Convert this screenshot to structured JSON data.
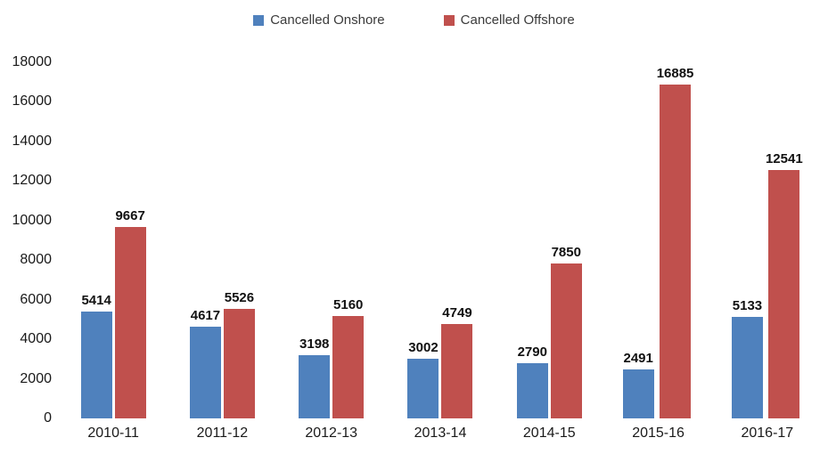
{
  "chart_data": {
    "type": "bar",
    "title": "",
    "xlabel": "",
    "ylabel": "",
    "categories": [
      "2010-11",
      "2011-12",
      "2012-13",
      "2013-14",
      "2014-15",
      "2015-16",
      "2016-17"
    ],
    "series": [
      {
        "name": "Cancelled Onshore",
        "color": "#4f81bd",
        "values": [
          5414,
          4617,
          3198,
          3002,
          2790,
          2491,
          5133
        ]
      },
      {
        "name": "Cancelled Offshore",
        "color": "#c0504d",
        "values": [
          9667,
          5526,
          5160,
          4749,
          7850,
          16885,
          12541
        ]
      }
    ],
    "ylim": [
      0,
      18000
    ],
    "ytick_step": 2000,
    "ytick_labels": [
      "0",
      "2000",
      "4000",
      "6000",
      "8000",
      "10000",
      "12000",
      "14000",
      "16000",
      "18000"
    ],
    "grid": false,
    "axis_lines": false,
    "data_labels": true,
    "legend_position": "top"
  },
  "colors": {
    "background": "#ffffff",
    "onshore": "#4f81bd",
    "offshore": "#c0504d",
    "value_label_text": "#111111",
    "axis_text": "#1a1a1a",
    "legend_text": "#3b3b3b"
  }
}
